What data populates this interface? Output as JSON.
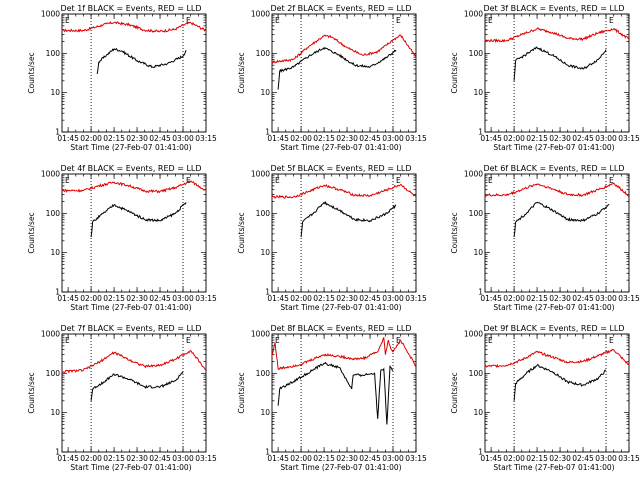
{
  "chart_data": [
    {
      "type": "line",
      "title": "Det 1f BLACK = Events, RED = LLD",
      "xlabel": "Start Time (27-Feb-07 01:41:00)",
      "ylabel": "Counts/sec",
      "x_ticks": [
        "01:45",
        "02:00",
        "02:15",
        "02:30",
        "02:45",
        "03:00",
        "03:15"
      ],
      "y_ticks": [
        "1",
        "10",
        "100",
        "1000"
      ],
      "ylim": [
        1,
        1000
      ],
      "y_scale": "log",
      "dotted_lines": [
        "02:00",
        "03:00"
      ],
      "marker": "E",
      "series": [
        {
          "color": "#e00000",
          "times": [
            "01:41",
            "01:55",
            "02:00",
            "02:10",
            "02:15",
            "02:25",
            "02:35",
            "02:45",
            "02:55",
            "03:00",
            "03:05",
            "03:15"
          ],
          "values": [
            380,
            380,
            430,
            560,
            610,
            530,
            390,
            360,
            410,
            520,
            600,
            380
          ]
        },
        {
          "color": "#000000",
          "times": [
            "02:04",
            "02:05",
            "02:10",
            "02:15",
            "02:20",
            "02:30",
            "02:40",
            "02:50",
            "03:00",
            "03:02"
          ],
          "values": [
            30,
            60,
            90,
            130,
            115,
            65,
            45,
            55,
            85,
            120
          ]
        }
      ]
    },
    {
      "type": "line",
      "title": "Det 2f BLACK = Events, RED = LLD",
      "xlabel": "Start Time (27-Feb-07 01:41:00)",
      "ylabel": "Counts/sec",
      "x_ticks": [
        "01:45",
        "02:00",
        "02:15",
        "02:30",
        "02:45",
        "03:00",
        "03:15"
      ],
      "y_ticks": [
        "1",
        "10",
        "100",
        "1000"
      ],
      "ylim": [
        1,
        1000
      ],
      "y_scale": "log",
      "dotted_lines": [
        "02:00",
        "03:00"
      ],
      "marker": "E",
      "series": [
        {
          "color": "#e00000",
          "times": [
            "01:41",
            "01:55",
            "02:05",
            "02:15",
            "02:20",
            "02:30",
            "02:40",
            "02:50",
            "03:00",
            "03:05",
            "03:15"
          ],
          "values": [
            60,
            70,
            150,
            280,
            260,
            140,
            90,
            110,
            220,
            290,
            80
          ]
        },
        {
          "color": "#000000",
          "times": [
            "01:45",
            "01:46",
            "01:55",
            "02:05",
            "02:15",
            "02:25",
            "02:35",
            "02:45",
            "02:55",
            "03:02"
          ],
          "values": [
            12,
            35,
            45,
            85,
            140,
            90,
            50,
            45,
            75,
            120
          ]
        }
      ]
    },
    {
      "type": "line",
      "title": "Det 3f BLACK = Events, RED = LLD",
      "xlabel": "Start Time (27-Feb-07 01:41:00)",
      "ylabel": "Counts/sec",
      "x_ticks": [
        "01:45",
        "02:00",
        "02:15",
        "02:30",
        "02:45",
        "03:00",
        "03:15"
      ],
      "y_ticks": [
        "1",
        "10",
        "100",
        "1000"
      ],
      "ylim": [
        1,
        1000
      ],
      "y_scale": "log",
      "dotted_lines": [
        "02:00",
        "03:00"
      ],
      "marker": "E",
      "series": [
        {
          "color": "#e00000",
          "times": [
            "01:41",
            "01:55",
            "02:05",
            "02:15",
            "02:25",
            "02:35",
            "02:45",
            "02:55",
            "03:05",
            "03:15"
          ],
          "values": [
            210,
            210,
            300,
            420,
            340,
            240,
            230,
            330,
            420,
            230
          ]
        },
        {
          "color": "#000000",
          "times": [
            "02:00",
            "02:01",
            "02:08",
            "02:15",
            "02:25",
            "02:35",
            "02:45",
            "02:55",
            "03:00"
          ],
          "values": [
            20,
            65,
            95,
            140,
            90,
            50,
            40,
            70,
            125
          ]
        }
      ]
    },
    {
      "type": "line",
      "title": "Det 4f BLACK = Events, RED = LLD",
      "xlabel": "Start Time (27-Feb-07 01:41:00)",
      "ylabel": "Counts/sec",
      "x_ticks": [
        "01:45",
        "02:00",
        "02:15",
        "02:30",
        "02:45",
        "03:00",
        "03:15"
      ],
      "y_ticks": [
        "1",
        "10",
        "100",
        "1000"
      ],
      "ylim": [
        1,
        1000
      ],
      "y_scale": "log",
      "dotted_lines": [
        "02:00",
        "03:00"
      ],
      "marker": "E",
      "series": [
        {
          "color": "#e00000",
          "times": [
            "01:41",
            "01:55",
            "02:05",
            "02:15",
            "02:25",
            "02:35",
            "02:45",
            "02:55",
            "03:05",
            "03:15"
          ],
          "values": [
            380,
            380,
            500,
            620,
            500,
            370,
            360,
            450,
            660,
            380
          ]
        },
        {
          "color": "#000000",
          "times": [
            "02:00",
            "02:01",
            "02:08",
            "02:15",
            "02:25",
            "02:35",
            "02:45",
            "02:55",
            "03:02"
          ],
          "values": [
            25,
            60,
            100,
            165,
            110,
            70,
            65,
            100,
            190
          ]
        }
      ]
    },
    {
      "type": "line",
      "title": "Det 5f BLACK = Events, RED = LLD",
      "xlabel": "Start Time (27-Feb-07 01:41:00)",
      "ylabel": "Counts/sec",
      "x_ticks": [
        "01:45",
        "02:00",
        "02:15",
        "02:30",
        "02:45",
        "03:00",
        "03:15"
      ],
      "y_ticks": [
        "1",
        "10",
        "100",
        "1000"
      ],
      "ylim": [
        1,
        1000
      ],
      "y_scale": "log",
      "dotted_lines": [
        "02:00",
        "03:00"
      ],
      "marker": "E",
      "series": [
        {
          "color": "#e00000",
          "times": [
            "01:41",
            "01:55",
            "02:05",
            "02:15",
            "02:25",
            "02:35",
            "02:45",
            "02:55",
            "03:05",
            "03:15"
          ],
          "values": [
            260,
            260,
            360,
            520,
            400,
            290,
            280,
            380,
            540,
            260
          ]
        },
        {
          "color": "#000000",
          "times": [
            "02:00",
            "02:01",
            "02:08",
            "02:15",
            "02:25",
            "02:35",
            "02:45",
            "02:55",
            "03:02"
          ],
          "values": [
            25,
            60,
            100,
            190,
            120,
            70,
            65,
            95,
            160
          ]
        }
      ]
    },
    {
      "type": "line",
      "title": "Det 6f BLACK = Events, RED = LLD",
      "xlabel": "Start Time (27-Feb-07 01:41:00)",
      "ylabel": "Counts/sec",
      "x_ticks": [
        "01:45",
        "02:00",
        "02:15",
        "02:30",
        "02:45",
        "03:00",
        "03:15"
      ],
      "y_ticks": [
        "1",
        "10",
        "100",
        "1000"
      ],
      "ylim": [
        1,
        1000
      ],
      "y_scale": "log",
      "dotted_lines": [
        "02:00",
        "03:00"
      ],
      "marker": "E",
      "series": [
        {
          "color": "#e00000",
          "times": [
            "01:41",
            "01:55",
            "02:05",
            "02:15",
            "02:25",
            "02:35",
            "02:45",
            "02:55",
            "03:05",
            "03:15"
          ],
          "values": [
            290,
            290,
            400,
            560,
            420,
            300,
            290,
            400,
            580,
            280
          ]
        },
        {
          "color": "#000000",
          "times": [
            "02:00",
            "02:01",
            "02:08",
            "02:15",
            "02:25",
            "02:35",
            "02:45",
            "02:55",
            "03:02"
          ],
          "values": [
            25,
            60,
            100,
            190,
            120,
            70,
            65,
            100,
            170
          ]
        }
      ]
    },
    {
      "type": "line",
      "title": "Det 7f BLACK = Events, RED = LLD",
      "xlabel": "Start Time (27-Feb-07 01:41:00)",
      "ylabel": "Counts/sec",
      "x_ticks": [
        "01:45",
        "02:00",
        "02:15",
        "02:30",
        "02:45",
        "03:00",
        "03:15"
      ],
      "y_ticks": [
        "1",
        "10",
        "100",
        "1000"
      ],
      "ylim": [
        1,
        1000
      ],
      "y_scale": "log",
      "dotted_lines": [
        "02:00",
        "03:00"
      ],
      "marker": "E",
      "series": [
        {
          "color": "#e00000",
          "times": [
            "01:41",
            "01:55",
            "02:05",
            "02:15",
            "02:25",
            "02:35",
            "02:45",
            "02:55",
            "03:05",
            "03:15"
          ],
          "values": [
            110,
            120,
            190,
            340,
            220,
            150,
            160,
            230,
            380,
            120
          ]
        },
        {
          "color": "#000000",
          "times": [
            "02:00",
            "02:01",
            "02:08",
            "02:15",
            "02:25",
            "02:35",
            "02:45",
            "02:55",
            "03:00"
          ],
          "values": [
            20,
            40,
            60,
            95,
            70,
            45,
            45,
            65,
            110
          ]
        }
      ]
    },
    {
      "type": "line",
      "title": "Det 8f BLACK = Events, RED = LLD",
      "xlabel": "Start Time (27-Feb-07 01:41:00)",
      "ylabel": "Counts/sec",
      "x_ticks": [
        "01:45",
        "02:00",
        "02:15",
        "02:30",
        "02:45",
        "03:00",
        "03:15"
      ],
      "y_ticks": [
        "1",
        "10",
        "100",
        "1000"
      ],
      "ylim": [
        1,
        1000
      ],
      "y_scale": "log",
      "dotted_lines": [
        "02:00",
        "03:00"
      ],
      "marker": "E",
      "series": [
        {
          "color": "#e00000",
          "times": [
            "01:41",
            "01:43",
            "01:45",
            "02:00",
            "02:15",
            "02:25",
            "02:35",
            "02:43",
            "02:45",
            "02:50",
            "02:54",
            "02:55",
            "02:57",
            "02:58",
            "03:00",
            "03:05",
            "03:15"
          ],
          "values": [
            280,
            600,
            130,
            170,
            300,
            270,
            230,
            250,
            300,
            350,
            800,
            300,
            700,
            500,
            350,
            700,
            150
          ]
        },
        {
          "color": "#000000",
          "times": [
            "01:45",
            "01:46",
            "02:00",
            "02:15",
            "02:25",
            "02:33",
            "02:34",
            "02:40",
            "02:48",
            "02:50",
            "02:52",
            "02:54",
            "02:56",
            "02:58",
            "03:00"
          ],
          "values": [
            15,
            40,
            80,
            180,
            140,
            40,
            90,
            90,
            100,
            7,
            120,
            130,
            5,
            150,
            120
          ]
        }
      ]
    },
    {
      "type": "line",
      "title": "Det 9f BLACK = Events, RED = LLD",
      "xlabel": "Start Time (27-Feb-07 01:41:00)",
      "ylabel": "Counts/sec",
      "x_ticks": [
        "01:45",
        "02:00",
        "02:15",
        "02:30",
        "02:45",
        "03:00",
        "03:15"
      ],
      "y_ticks": [
        "1",
        "10",
        "100",
        "1000"
      ],
      "ylim": [
        1,
        1000
      ],
      "y_scale": "log",
      "dotted_lines": [
        "02:00",
        "03:00"
      ],
      "marker": "E",
      "series": [
        {
          "color": "#e00000",
          "times": [
            "01:41",
            "01:55",
            "02:05",
            "02:15",
            "02:25",
            "02:35",
            "02:45",
            "02:55",
            "03:05",
            "03:15"
          ],
          "values": [
            150,
            160,
            220,
            350,
            260,
            190,
            200,
            280,
            400,
            160
          ]
        },
        {
          "color": "#000000",
          "times": [
            "02:00",
            "02:01",
            "02:08",
            "02:15",
            "02:25",
            "02:35",
            "02:45",
            "02:55",
            "03:00"
          ],
          "values": [
            20,
            55,
            100,
            160,
            110,
            60,
            50,
            75,
            120
          ]
        }
      ]
    }
  ]
}
